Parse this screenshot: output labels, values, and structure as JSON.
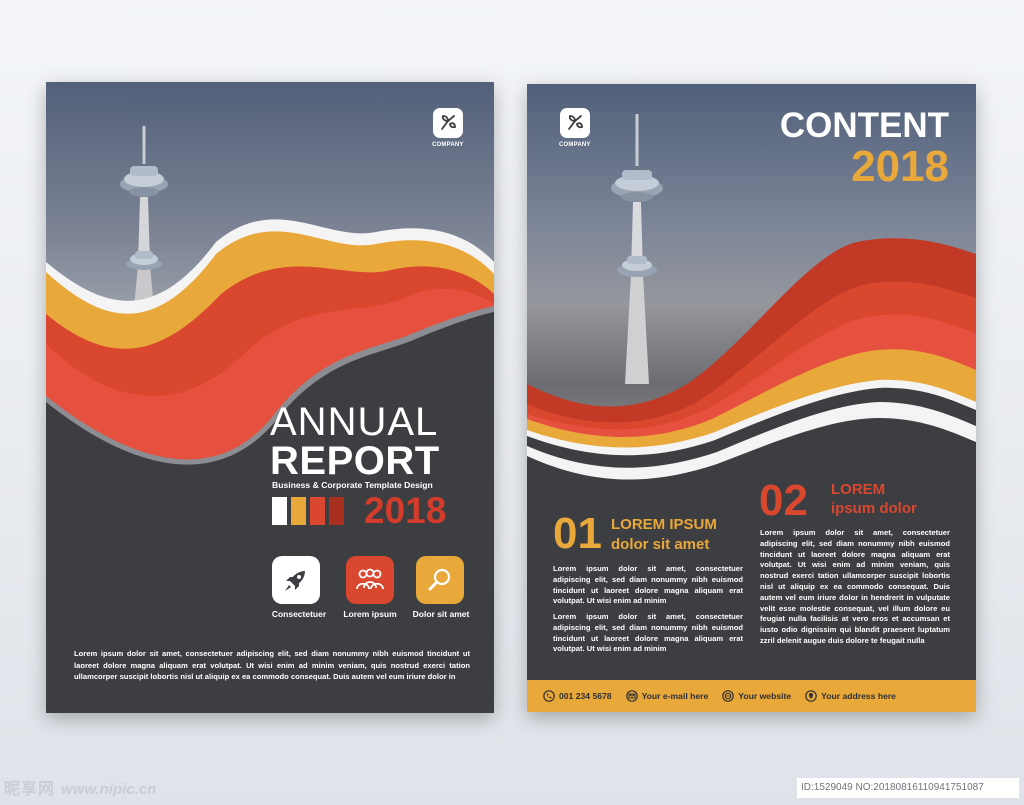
{
  "left_page": {
    "logo_text": "COMPANY",
    "title_line1": "ANNUAL",
    "title_line2": "REPORT",
    "subtitle": "Business & Corporate Template Design",
    "year": "2018",
    "color_bars": [
      "#ffffff",
      "#e8a83a",
      "#d9472f",
      "#a9301f"
    ],
    "features": [
      {
        "icon": "rocket-icon",
        "label": "Consectetuer",
        "color": "#ffffff"
      },
      {
        "icon": "people-icon",
        "label": "Lorem ipsum",
        "color": "#d9472f"
      },
      {
        "icon": "search-icon",
        "label": "Dolor sit amet",
        "color": "#e8a83a"
      }
    ],
    "body_text": "Lorem ipsum dolor sit amet, consectetuer adipiscing elit, sed diam nonummy nibh euismod tincidunt ut laoreet dolore magna aliquam erat volutpat. Ut wisi enim ad minim veniam, quis nostrud exerci tation ullamcorper suscipit lobortis nisl ut aliquip ex ea commodo consequat. Duis autem vel eum iriure dolor in"
  },
  "right_page": {
    "logo_text": "COMPANY",
    "title": "CONTENT",
    "year": "2018",
    "section1": {
      "number": "01",
      "heading_line1": "LOREM IPSUM",
      "heading_line2": "dolor sit amet",
      "para1": "Lorem ipsum dolor sit amet, consectetuer adipiscing elit, sed diam nonummy nibh euismod tincidunt ut laoreet dolore magna aliquam erat volutpat. Ut wisi enim ad minim",
      "para2": "Lorem ipsum dolor sit amet, consectetuer adipiscing elit, sed diam nonummy nibh euismod tincidunt ut laoreet dolore magna aliquam erat volutpat. Ut wisi enim ad minim"
    },
    "section2": {
      "number": "02",
      "heading_line1": "LOREM",
      "heading_line2": "ipsum dolor",
      "para": "Lorem ipsum dolor sit amet, consectetuer adipiscing elit, sed diam nonummy nibh euismod tincidunt ut laoreet dolore magna aliquam erat volutpat. Ut wisi enim ad minim veniam, quis nostrud exerci tation ullamcorper suscipit lobortis nisl ut aliquip ex ea commodo consequat. Duis autem vel eum iriure dolor in hendrerit in vulputate velit esse molestie consequat, vel illum dolore eu feugiat nulla facilisis at vero eros et accumsan et iusto odio dignissim qui blandit praesent luptatum zzril delenit augue duis dolore te feugait nulla"
    },
    "footer": {
      "phone": "001 234 5678",
      "email": "Your e-mail here",
      "website": "Your website",
      "address": "Your address here"
    }
  },
  "watermark": {
    "brand": "昵享网",
    "url": "www.nipic.cn",
    "id_text": "ID:1529049 NO:20180816110941751087"
  },
  "colors": {
    "yellow": "#e8a83a",
    "red": "#d9472f",
    "dark_red": "#a9301f",
    "charcoal": "#3d3e42"
  }
}
